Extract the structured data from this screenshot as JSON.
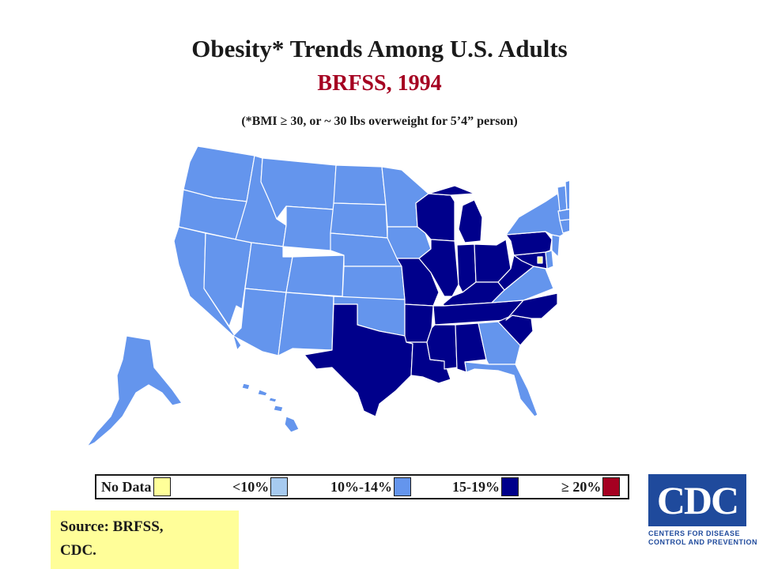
{
  "title": "Obesity* Trends Among U.S. Adults",
  "subtitle": "BRFSS, 1994",
  "note": "(*BMI ≥ 30, or ~ 30 lbs overweight for 5’4” person)",
  "legend": [
    {
      "label": "No Data",
      "color": "#ffff99"
    },
    {
      "label": "<10%",
      "color": "#a6caf0"
    },
    {
      "label": "10%-14%",
      "color": "#6495ed"
    },
    {
      "label": "15-19%",
      "color": "#00008b"
    },
    {
      "label": "≥ 20%",
      "color": "#a50021"
    }
  ],
  "source": {
    "line1": "Source: BRFSS,",
    "line2": "CDC."
  },
  "logo": {
    "text": "CDC",
    "line1": "CENTERS FOR DISEASE",
    "line2": "CONTROL AND PREVENTION"
  },
  "category_colors": {
    "no_data": "#ffff99",
    "lt10": "#a6caf0",
    "c10_14": "#6495ed",
    "c15_19": "#00008b",
    "ge20": "#a50021"
  },
  "states": {
    "WA": "10-14",
    "OR": "10-14",
    "CA": "10-14",
    "NV": "10-14",
    "ID": "10-14",
    "MT": "10-14",
    "WY": "10-14",
    "UT": "10-14",
    "AZ": "10-14",
    "CO": "10-14",
    "NM": "10-14",
    "ND": "10-14",
    "SD": "10-14",
    "NE": "10-14",
    "KS": "10-14",
    "OK": "10-14",
    "TX": "15-19",
    "MN": "10-14",
    "IA": "10-14",
    "MO": "15-19",
    "AR": "15-19",
    "LA": "15-19",
    "WI": "15-19",
    "IL": "15-19",
    "MI": "15-19",
    "IN": "15-19",
    "OH": "15-19",
    "KY": "15-19",
    "TN": "15-19",
    "MS": "15-19",
    "AL": "15-19",
    "GA": "10-14",
    "FL": "10-14",
    "SC": "15-19",
    "NC": "15-19",
    "VA": "10-14",
    "WV": "15-19",
    "MD": "15-19",
    "DE": "10-14",
    "PA": "15-19",
    "NJ": "10-14",
    "NY": "10-14",
    "CT": "10-14",
    "RI": "10-14",
    "MA": "10-14",
    "VT": "10-14",
    "NH": "10-14",
    "ME": "10-14",
    "AK": "10-14",
    "HI": "10-14",
    "DC": "No Data"
  }
}
